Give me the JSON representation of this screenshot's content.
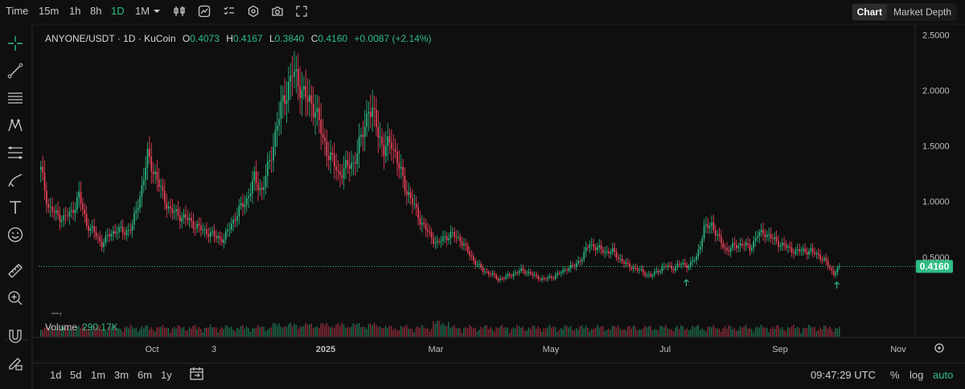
{
  "toolbar": {
    "time_label": "Time",
    "intervals": [
      "15m",
      "1h",
      "8h",
      "1D",
      "1M"
    ],
    "active_interval": "1D",
    "chart_tab": "Chart",
    "depth_tab": "Market Depth"
  },
  "legend": {
    "symbol": "ANYONE/USDT · 1D · KuCoin",
    "o_label": "O",
    "o_value": "0.4073",
    "h_label": "H",
    "h_value": "0.4167",
    "l_label": "L",
    "l_value": "0.3840",
    "c_label": "C",
    "c_value": "0.4160",
    "change": "+0.0087 (+2.14%)"
  },
  "volume": {
    "label": "Volume",
    "value": "290.17K"
  },
  "price_tag": "0.4160",
  "bottom": {
    "ranges": [
      "1d",
      "5d",
      "1m",
      "3m",
      "6m",
      "1y"
    ],
    "clock": "09:47:29 UTC",
    "pct": "%",
    "log": "log",
    "auto": "auto"
  },
  "colors": {
    "up": "#2ebd85",
    "down": "#f6465d",
    "bg": "#0f0f0f"
  },
  "chart_data": {
    "type": "candlestick",
    "y_ticks": [
      "2.5000",
      "2.0000",
      "1.5000",
      "1.0000",
      "0.5000"
    ],
    "x_ticks": [
      "Oct",
      "3",
      "2025",
      "Mar",
      "May",
      "Jul",
      "Sep",
      "Nov"
    ],
    "last_price": 0.416,
    "series_close": [
      [
        0,
        1.28
      ],
      [
        4,
        0.95
      ],
      [
        8,
        0.88
      ],
      [
        12,
        0.85
      ],
      [
        16,
        0.9
      ],
      [
        20,
        1.05
      ],
      [
        24,
        0.8
      ],
      [
        28,
        0.72
      ],
      [
        32,
        0.62
      ],
      [
        36,
        0.7
      ],
      [
        40,
        0.75
      ],
      [
        44,
        0.72
      ],
      [
        48,
        0.78
      ],
      [
        52,
        1.05
      ],
      [
        56,
        1.4
      ],
      [
        60,
        1.25
      ],
      [
        64,
        1.05
      ],
      [
        68,
        0.92
      ],
      [
        72,
        0.88
      ],
      [
        76,
        0.85
      ],
      [
        80,
        0.8
      ],
      [
        84,
        0.75
      ],
      [
        88,
        0.72
      ],
      [
        92,
        0.68
      ],
      [
        96,
        0.66
      ],
      [
        100,
        0.8
      ],
      [
        104,
        0.92
      ],
      [
        108,
        1.02
      ],
      [
        112,
        1.2
      ],
      [
        116,
        1.1
      ],
      [
        120,
        1.35
      ],
      [
        124,
        1.7
      ],
      [
        128,
        1.95
      ],
      [
        132,
        2.15
      ],
      [
        136,
        2.05
      ],
      [
        140,
        1.9
      ],
      [
        144,
        1.85
      ],
      [
        148,
        1.55
      ],
      [
        152,
        1.4
      ],
      [
        156,
        1.25
      ],
      [
        160,
        1.3
      ],
      [
        164,
        1.35
      ],
      [
        168,
        1.55
      ],
      [
        172,
        1.85
      ],
      [
        176,
        1.7
      ],
      [
        180,
        1.45
      ],
      [
        184,
        1.55
      ],
      [
        188,
        1.3
      ],
      [
        192,
        1.1
      ],
      [
        196,
        0.95
      ],
      [
        200,
        0.8
      ],
      [
        204,
        0.7
      ],
      [
        208,
        0.62
      ],
      [
        212,
        0.68
      ],
      [
        216,
        0.7
      ],
      [
        220,
        0.66
      ],
      [
        224,
        0.55
      ],
      [
        228,
        0.45
      ],
      [
        232,
        0.38
      ],
      [
        236,
        0.35
      ],
      [
        240,
        0.3
      ],
      [
        244,
        0.32
      ],
      [
        248,
        0.35
      ],
      [
        252,
        0.38
      ],
      [
        256,
        0.36
      ],
      [
        260,
        0.32
      ],
      [
        264,
        0.3
      ],
      [
        268,
        0.32
      ],
      [
        272,
        0.35
      ],
      [
        276,
        0.4
      ],
      [
        280,
        0.42
      ],
      [
        284,
        0.5
      ],
      [
        288,
        0.62
      ],
      [
        292,
        0.58
      ],
      [
        296,
        0.55
      ],
      [
        300,
        0.55
      ],
      [
        304,
        0.48
      ],
      [
        308,
        0.42
      ],
      [
        312,
        0.4
      ],
      [
        316,
        0.36
      ],
      [
        320,
        0.33
      ],
      [
        324,
        0.38
      ],
      [
        328,
        0.42
      ],
      [
        332,
        0.4
      ],
      [
        336,
        0.44
      ],
      [
        340,
        0.42
      ],
      [
        344,
        0.5
      ],
      [
        348,
        0.75
      ],
      [
        352,
        0.8
      ],
      [
        356,
        0.65
      ],
      [
        360,
        0.56
      ],
      [
        364,
        0.6
      ],
      [
        368,
        0.62
      ],
      [
        372,
        0.58
      ],
      [
        376,
        0.7
      ],
      [
        380,
        0.72
      ],
      [
        384,
        0.66
      ],
      [
        388,
        0.62
      ],
      [
        392,
        0.58
      ],
      [
        396,
        0.55
      ],
      [
        400,
        0.56
      ],
      [
        404,
        0.55
      ],
      [
        408,
        0.52
      ],
      [
        412,
        0.45
      ],
      [
        416,
        0.35
      ],
      [
        419,
        0.416
      ]
    ]
  }
}
